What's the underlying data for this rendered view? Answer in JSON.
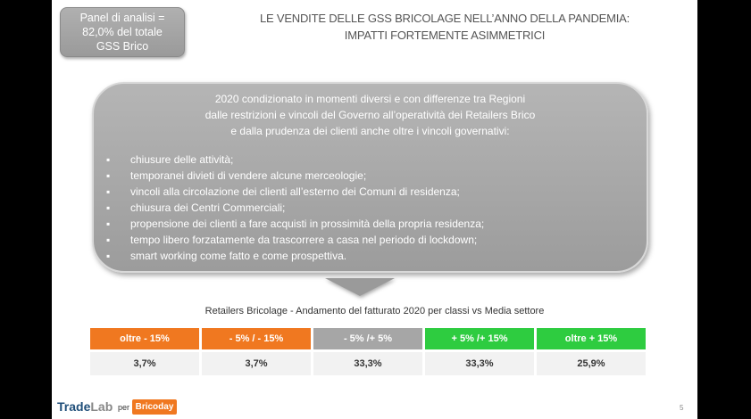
{
  "panel": {
    "lines": [
      "Panel di analisi =",
      "82,0% del totale",
      "GSS Brico"
    ]
  },
  "title": {
    "lines": [
      "LE VENDITE DELLE GSS BRICOLAGE NELL’ANNO DELLA PANDEMIA:",
      "IMPATTI FORTEMENTE ASIMMETRICI"
    ]
  },
  "bubble": {
    "intro": [
      "2020 condizionato in momenti diversi e con differenze tra Regioni",
      "dalle restrizioni e vincoli del Governo all’operatività dei Retailers Brico",
      "e dalla prudenza dei clienti anche oltre i vincoli governativi:"
    ],
    "bullet_symbol": "▪",
    "bullets": [
      "chiusure delle attività;",
      "temporanei divieti di vendere alcune merceologie;",
      "vincoli alla circolazione dei clienti all’esterno dei Comuni di residenza;",
      "chiusura dei Centri Commerciali;",
      "propensione dei clienti a fare acquisti in prossimità della propria residenza;",
      "tempo libero forzatamente da trascorrere a casa nel periodo di lockdown;",
      "smart working come fatto e come prospettiva."
    ]
  },
  "table": {
    "title": "Retailers Bricolage - Andamento del fatturato 2020 per classi vs Media settore",
    "headers": [
      "oltre - 15%",
      "- 5% / - 15%",
      "- 5% /+ 5%",
      "+ 5% /+ 15%",
      "oltre + 15%"
    ],
    "values": [
      "3,7%",
      "3,7%",
      "33,3%",
      "33,3%",
      "25,9%"
    ],
    "colors": [
      "#f07820",
      "#f07820",
      "#a6a6a6",
      "#2ecc40",
      "#2ecc40"
    ]
  },
  "footer": {
    "logo_trade": "Trade",
    "logo_lab": "Lab",
    "per": "per",
    "brico": "Bricoday",
    "page": "5"
  }
}
